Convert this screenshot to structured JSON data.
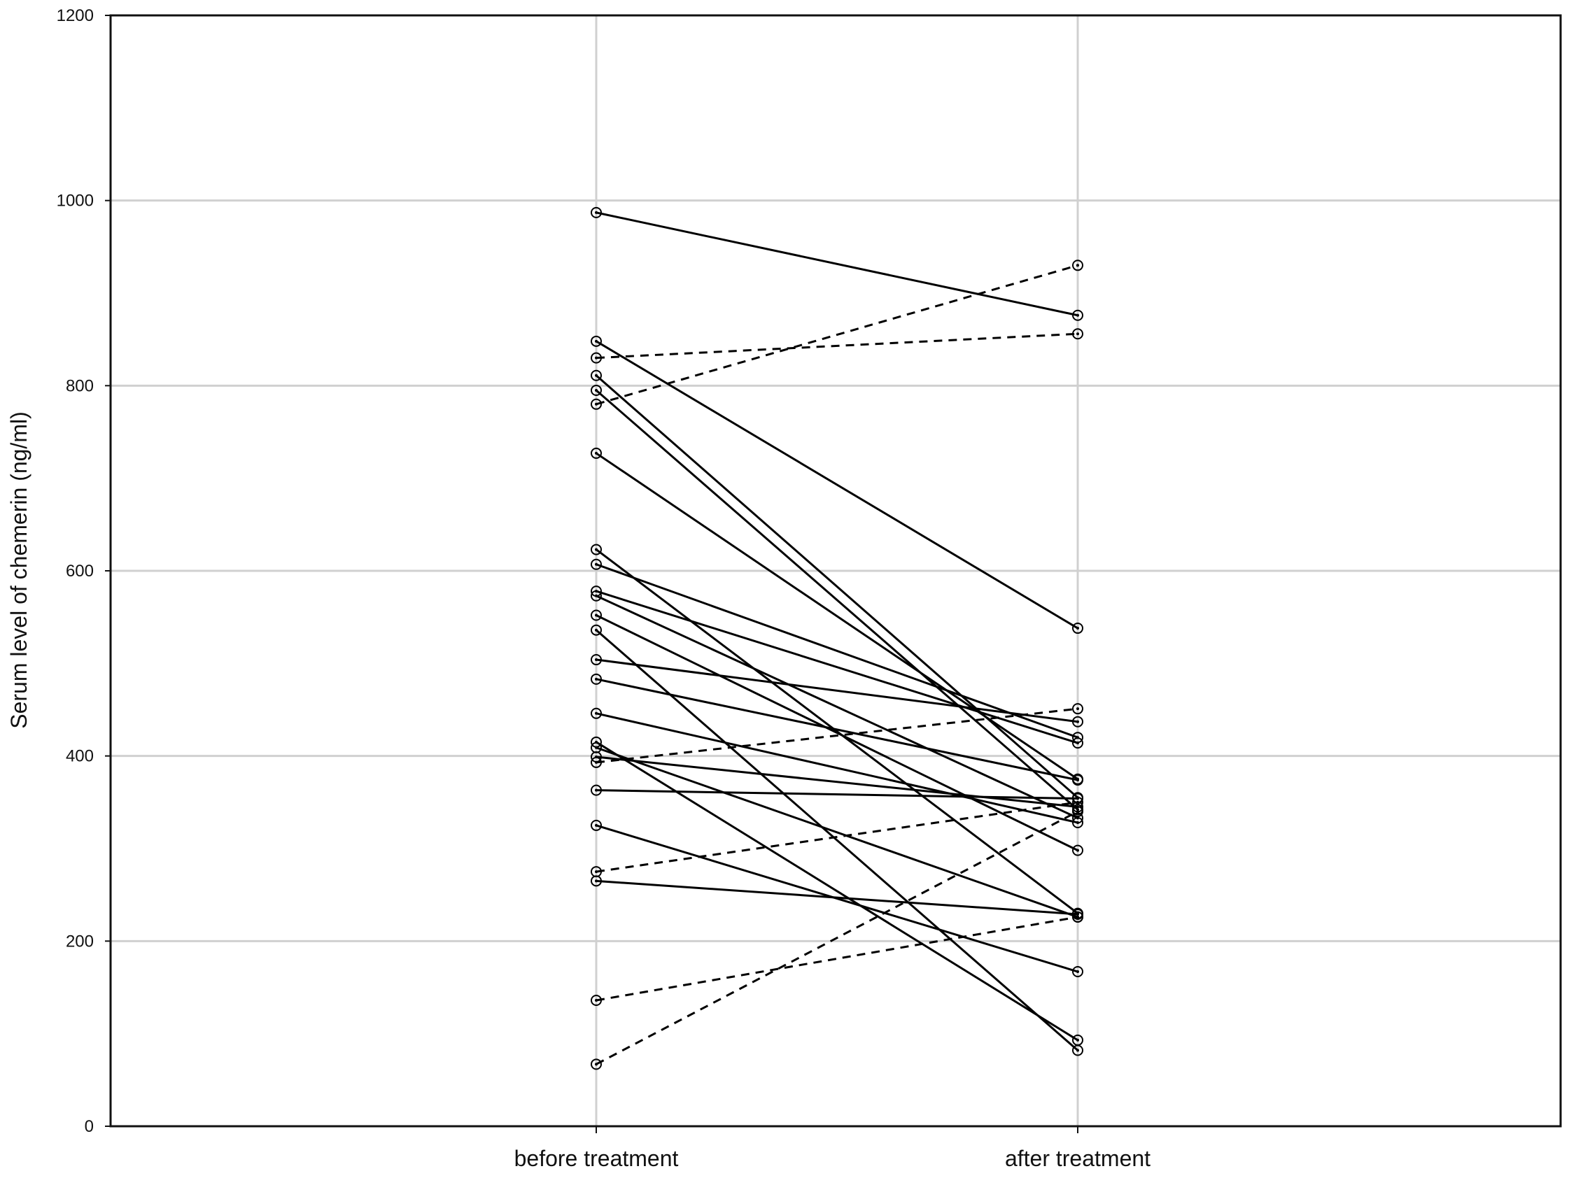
{
  "chart_data": {
    "type": "line",
    "title": "",
    "xlabel": "",
    "ylabel": "Serum level of chemerin (ng/ml)",
    "categories": [
      "before treatment",
      "after treatment"
    ],
    "ylim": [
      0,
      1200
    ],
    "yticks": [
      0,
      200,
      400,
      600,
      800,
      1000,
      1200
    ],
    "grid": true,
    "legend": "none",
    "series": [
      {
        "values": [
          987,
          876
        ],
        "style": "solid"
      },
      {
        "values": [
          848,
          538
        ],
        "style": "solid"
      },
      {
        "values": [
          811,
          355
        ],
        "style": "solid"
      },
      {
        "values": [
          795,
          342
        ],
        "style": "solid"
      },
      {
        "values": [
          727,
          375
        ],
        "style": "solid"
      },
      {
        "values": [
          623,
          230
        ],
        "style": "solid"
      },
      {
        "values": [
          607,
          420
        ],
        "style": "solid"
      },
      {
        "values": [
          578,
          414
        ],
        "style": "solid"
      },
      {
        "values": [
          573,
          333
        ],
        "style": "solid"
      },
      {
        "values": [
          552,
          298
        ],
        "style": "solid"
      },
      {
        "values": [
          536,
          82
        ],
        "style": "solid"
      },
      {
        "values": [
          504,
          437
        ],
        "style": "solid"
      },
      {
        "values": [
          483,
          374
        ],
        "style": "solid"
      },
      {
        "values": [
          446,
          328
        ],
        "style": "solid"
      },
      {
        "values": [
          415,
          93
        ],
        "style": "solid"
      },
      {
        "values": [
          409,
          226
        ],
        "style": "solid"
      },
      {
        "values": [
          399,
          345
        ],
        "style": "solid"
      },
      {
        "values": [
          363,
          354
        ],
        "style": "solid"
      },
      {
        "values": [
          325,
          167
        ],
        "style": "solid"
      },
      {
        "values": [
          265,
          229
        ],
        "style": "solid"
      },
      {
        "values": [
          830,
          856
        ],
        "style": "dashed"
      },
      {
        "values": [
          780,
          930
        ],
        "style": "dashed"
      },
      {
        "values": [
          393,
          451
        ],
        "style": "dashed"
      },
      {
        "values": [
          275,
          350
        ],
        "style": "dashed"
      },
      {
        "values": [
          136,
          226
        ],
        "style": "dashed"
      },
      {
        "values": [
          67,
          340
        ],
        "style": "dashed"
      }
    ]
  }
}
